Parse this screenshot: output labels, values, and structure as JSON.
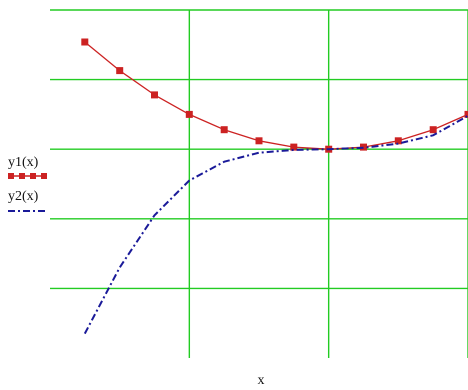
{
  "chart_data": {
    "type": "line",
    "title": "",
    "xlabel": "x",
    "ylabel": "",
    "xlim": [
      -4,
      2
    ],
    "ylim": [
      -3,
      2
    ],
    "grid": true,
    "grid_color": "#22cc22",
    "x_grid": [
      -2,
      0,
      2
    ],
    "y_grid": [
      -2,
      -1,
      0,
      1,
      2
    ],
    "legend_position": "left",
    "series": [
      {
        "name": "y1(x)",
        "color": "#cc2222",
        "marker": "square",
        "line_style": "solid",
        "x": [
          -3.5,
          -3.0,
          -2.5,
          -2.0,
          -1.5,
          -1.0,
          -0.5,
          0.0,
          0.5,
          1.0,
          1.5,
          2.0
        ],
        "y": [
          1.54,
          1.13,
          0.78,
          0.5,
          0.28,
          0.12,
          0.03,
          0.0,
          0.03,
          0.12,
          0.28,
          0.5
        ]
      },
      {
        "name": "y2(x)",
        "color": "#1a1a99",
        "marker": "none",
        "line_style": "dash-dot",
        "x": [
          -3.5,
          -3.0,
          -2.5,
          -2.0,
          -1.5,
          -1.0,
          -0.5,
          0.0,
          0.5,
          1.0,
          1.5,
          2.0
        ],
        "y": [
          -2.65,
          -1.7,
          -0.95,
          -0.45,
          -0.18,
          -0.05,
          -0.01,
          0.0,
          0.02,
          0.08,
          0.2,
          0.48
        ]
      }
    ]
  }
}
